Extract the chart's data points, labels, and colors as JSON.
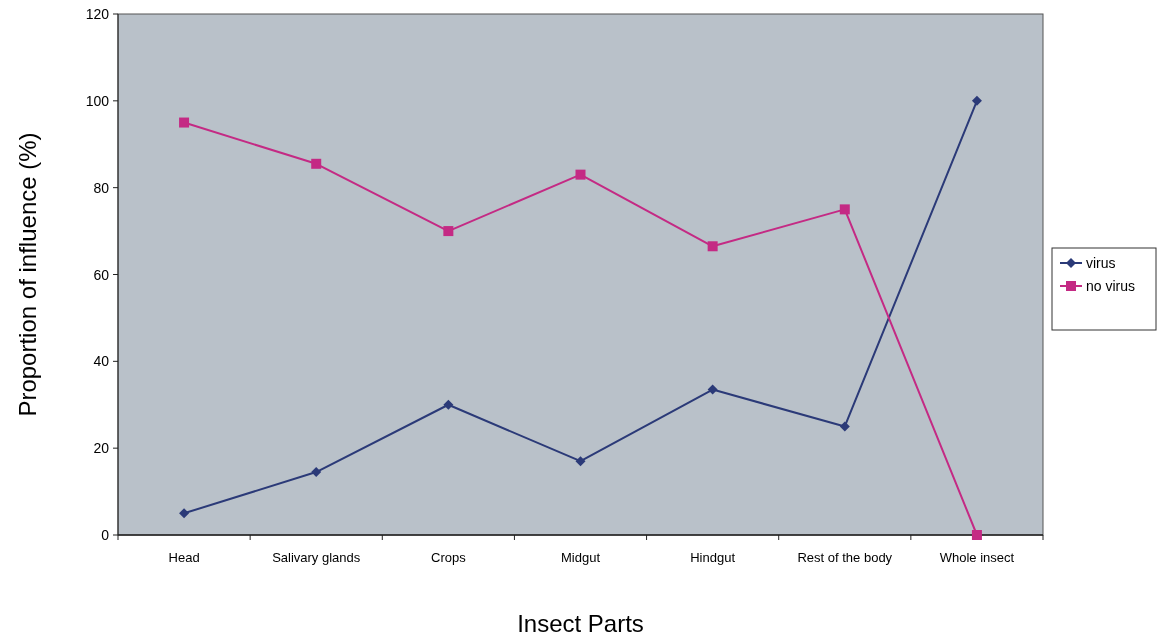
{
  "chart_data": {
    "type": "line",
    "xlabel": "Insect Parts",
    "ylabel": "Proportion of influence  (%)",
    "categories": [
      "Head",
      "Salivary glands",
      "Crops",
      "Midgut",
      "Hindgut",
      "Rest of the body",
      "Whole insect"
    ],
    "series": [
      {
        "name": "virus",
        "color": "#2b3a78",
        "marker": "diamond",
        "values": [
          5,
          14.5,
          30,
          17,
          33.5,
          25,
          100
        ]
      },
      {
        "name": "no virus",
        "color": "#c42a84",
        "marker": "square",
        "values": [
          95,
          85.5,
          70,
          83,
          66.5,
          75,
          0
        ]
      }
    ],
    "ylim": [
      0,
      120
    ],
    "yticks": [
      0,
      20,
      40,
      60,
      80,
      100,
      120
    ],
    "grid": false,
    "legend": "right",
    "line_style": "solid"
  }
}
